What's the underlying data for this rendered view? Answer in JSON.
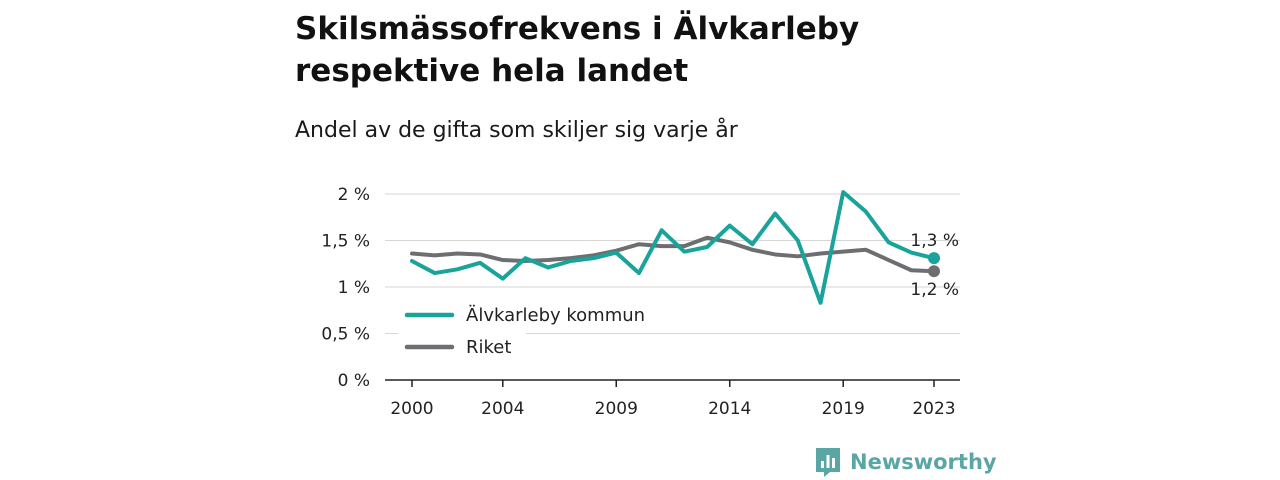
{
  "title": "Skilsmässofrekvens i Älvkarleby respektive hela landet",
  "subtitle": "Andel av de gifta som skiljer sig varje år",
  "brand": {
    "name": "Newsworthy",
    "color": "#5aa6a4"
  },
  "chart_data": {
    "type": "line",
    "title": "Skilsmässofrekvens i Älvkarleby respektive hela landet",
    "subtitle": "Andel av de gifta som skiljer sig varje år",
    "x": [
      2000,
      2001,
      2002,
      2003,
      2004,
      2005,
      2006,
      2007,
      2008,
      2009,
      2010,
      2011,
      2012,
      2013,
      2014,
      2015,
      2016,
      2017,
      2018,
      2019,
      2020,
      2021,
      2022,
      2023
    ],
    "xticks": [
      2000,
      2004,
      2009,
      2014,
      2019,
      2023
    ],
    "xlim": [
      2000,
      2023
    ],
    "ylim": [
      0,
      2
    ],
    "yticks": [
      0,
      0.5,
      1,
      1.5,
      2
    ],
    "ytick_labels": [
      "0 %",
      "0,5 %",
      "1 %",
      "1,5 %",
      "2 %"
    ],
    "grid": true,
    "legend_position": "lower-left",
    "series": [
      {
        "name": "Älvkarleby kommun",
        "color": "#19a39a",
        "values": [
          1.28,
          1.15,
          1.19,
          1.26,
          1.09,
          1.31,
          1.21,
          1.28,
          1.31,
          1.37,
          1.15,
          1.61,
          1.38,
          1.43,
          1.66,
          1.46,
          1.79,
          1.5,
          0.83,
          2.02,
          1.81,
          1.48,
          1.37,
          1.31
        ],
        "end_label": "1,3 %"
      },
      {
        "name": "Riket",
        "color": "#6d6e71",
        "values": [
          1.36,
          1.34,
          1.36,
          1.35,
          1.29,
          1.28,
          1.29,
          1.31,
          1.34,
          1.39,
          1.46,
          1.44,
          1.44,
          1.53,
          1.48,
          1.4,
          1.35,
          1.33,
          1.36,
          1.38,
          1.4,
          1.29,
          1.18,
          1.17
        ],
        "end_label": "1,2 %"
      }
    ]
  }
}
